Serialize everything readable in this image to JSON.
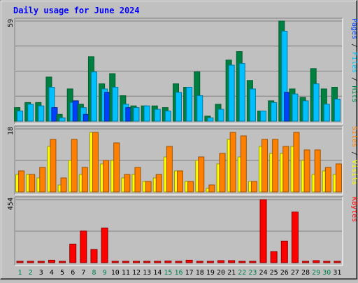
{
  "chart_data": {
    "type": "bar",
    "title": "Daily usage for June 2024",
    "days": [
      "1",
      "2",
      "3",
      "4",
      "5",
      "6",
      "7",
      "8",
      "9",
      "10",
      "11",
      "12",
      "13",
      "14",
      "15",
      "16",
      "17",
      "18",
      "19",
      "20",
      "21",
      "22",
      "23",
      "24",
      "25",
      "26",
      "27",
      "28",
      "29",
      "30",
      "31"
    ],
    "weekend_day_indices": [
      0,
      1,
      7,
      8,
      14,
      15,
      21,
      22,
      28,
      29
    ],
    "panels": [
      {
        "id": "hits-files-pages",
        "ymax": 59,
        "ymax_label": "59",
        "legend": [
          "Pages",
          "Files",
          "Hits"
        ],
        "series": [
          {
            "name": "Hits",
            "color": "#008040",
            "values": [
              8,
              11,
              11,
              26,
              4,
              19,
              10,
              38,
              22,
              28,
              15,
              9,
              9,
              9,
              8,
              22,
              20,
              29,
              3,
              10,
              36,
              41,
              24,
              6,
              12,
              59,
              19,
              14,
              31,
              19,
              20
            ]
          },
          {
            "name": "Files",
            "color": "#00c0ff",
            "values": [
              6,
              10,
              9,
              20,
              2,
              11,
              8,
              29,
              19,
              20,
              10,
              8,
              9,
              7,
              6,
              17,
              20,
              15,
              2,
              7,
              33,
              34,
              19,
              6,
              11,
              53,
              16,
              12,
              22,
              10,
              13
            ]
          },
          {
            "name": "Pages",
            "color": "#0040ff",
            "values": [
              0,
              0,
              0,
              8,
              0,
              12,
              4,
              0,
              17,
              0,
              8,
              0,
              0,
              0,
              0,
              0,
              0,
              0,
              0,
              0,
              0,
              0,
              0,
              0,
              0,
              17,
              0,
              0,
              0,
              0,
              0
            ]
          }
        ]
      },
      {
        "id": "visits-sites",
        "ymax": 18,
        "ymax_label": "18",
        "legend": [
          "Sites",
          "Visits"
        ],
        "series": [
          {
            "name": "Visits",
            "color": "#ffff00",
            "values": [
              5,
              5,
              4,
              13,
              2,
              9,
              5,
              17,
              8,
              9,
              4,
              5,
              3,
              4,
              10,
              6,
              3,
              9,
              1,
              8,
              15,
              10,
              3,
              13,
              11,
              11,
              13,
              9,
              5,
              6,
              5
            ]
          },
          {
            "name": "Sites",
            "color": "#ff8000",
            "values": [
              6,
              5,
              7,
              15,
              4,
              15,
              7,
              17,
              9,
              14,
              5,
              7,
              3,
              5,
              13,
              6,
              3,
              10,
              2,
              11,
              17,
              16,
              3,
              15,
              15,
              13,
              17,
              12,
              12,
              7,
              8
            ]
          }
        ]
      },
      {
        "id": "kbytes",
        "ymax": 454,
        "ymax_label": "454",
        "legend": [
          "KBytes"
        ],
        "series": [
          {
            "name": "KBytes",
            "color": "#ff0000",
            "values": [
              5,
              5,
              5,
              18,
              5,
              134,
              228,
              95,
              250,
              10,
              5,
              5,
              5,
              5,
              12,
              10,
              18,
              8,
              8,
              15,
              15,
              10,
              10,
              454,
              80,
              155,
              365,
              10,
              15,
              8,
              5
            ]
          }
        ]
      }
    ]
  },
  "colors": {
    "title": "#0000ff",
    "weekend_label": "#00804d",
    "weekday_label": "#000000",
    "panel_bg": "#c0c0c0",
    "grid": "#808080"
  }
}
